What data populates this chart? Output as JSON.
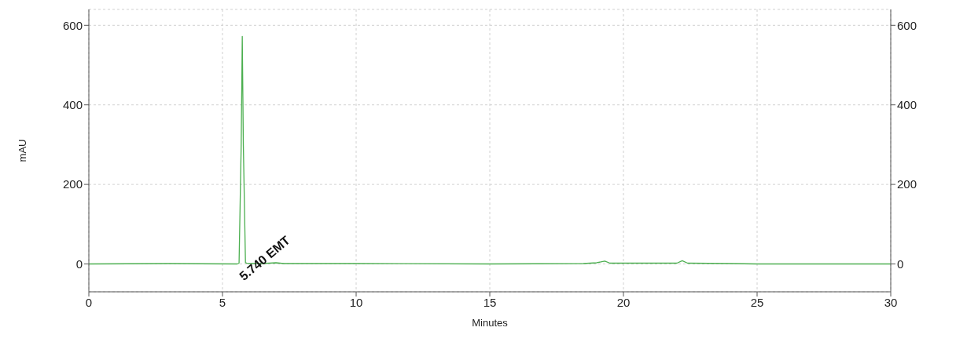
{
  "chart_data": {
    "type": "line",
    "xlabel": "Minutes",
    "ylabel": "mAU",
    "series": [
      {
        "color": "#4caf50",
        "x": [
          0,
          3,
          5.55,
          5.62,
          5.7,
          5.74,
          5.78,
          5.86,
          5.95,
          6.5,
          7,
          7.3,
          10,
          15,
          18.5,
          19,
          19.3,
          19.5,
          21,
          22,
          22.2,
          22.4,
          24,
          25,
          30
        ],
        "values": [
          0,
          1,
          0,
          2,
          300,
          572,
          300,
          3,
          1,
          1,
          3,
          1,
          1,
          0,
          1,
          3,
          7,
          2,
          2,
          2,
          8,
          2,
          1,
          0,
          0
        ]
      }
    ],
    "xlim": [
      0,
      30
    ],
    "xticks": [
      0,
      5,
      10,
      15,
      20,
      25,
      30
    ],
    "ylim": [
      -70,
      640
    ],
    "yticks": [
      0,
      200,
      400,
      600
    ],
    "y2lim": [
      -70,
      640
    ],
    "y2ticks": [
      0,
      200,
      400,
      600
    ],
    "annotations": [
      {
        "text": "5.740  EMT",
        "x": 5.74,
        "y": 0
      }
    ],
    "grid": true,
    "marker": "none",
    "line_style": "solid"
  }
}
